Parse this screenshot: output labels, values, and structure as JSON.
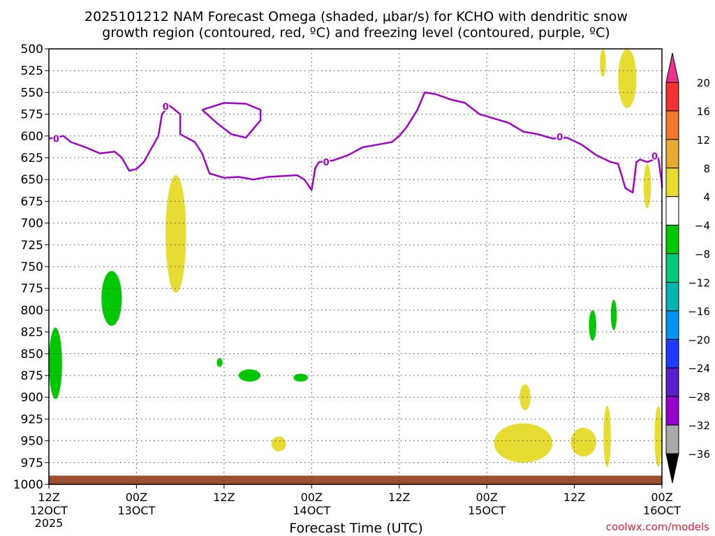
{
  "chart_data": {
    "type": "heatmap",
    "title_line1": "2025101212 NAM Forecast Omega (shaded, μbar/s) for KCHO with dendritic snow",
    "title_line2": "growth region (contoured, red, ºC) and freezing level (contoured, purple, ºC)",
    "xlabel": "Forecast Time (UTC)",
    "credit": "coolwx.com/models",
    "x_ticks": [
      {
        "hour": 0,
        "l1": "12Z",
        "l2": "12OCT",
        "l3": "2025"
      },
      {
        "hour": 12,
        "l1": "00Z",
        "l2": "13OCT",
        "l3": ""
      },
      {
        "hour": 24,
        "l1": "12Z",
        "l2": "",
        "l3": ""
      },
      {
        "hour": 36,
        "l1": "00Z",
        "l2": "14OCT",
        "l3": ""
      },
      {
        "hour": 48,
        "l1": "12Z",
        "l2": "",
        "l3": ""
      },
      {
        "hour": 60,
        "l1": "00Z",
        "l2": "15OCT",
        "l3": ""
      },
      {
        "hour": 72,
        "l1": "12Z",
        "l2": "",
        "l3": ""
      },
      {
        "hour": 84,
        "l1": "00Z",
        "l2": "16OCT",
        "l3": ""
      }
    ],
    "xlim": [
      0,
      84
    ],
    "pressure_levels": [
      "500",
      "525",
      "550",
      "575",
      "600",
      "625",
      "650",
      "675",
      "700",
      "725",
      "750",
      "775",
      "800",
      "825",
      "850",
      "875",
      "900",
      "925",
      "950",
      "975",
      "1000"
    ],
    "ylim_hpa": [
      500,
      1000
    ],
    "freezing_level": {
      "label": "0",
      "color": "#a000c8",
      "main": [
        [
          0,
          603
        ],
        [
          2,
          600
        ],
        [
          3,
          607
        ],
        [
          5,
          613
        ],
        [
          7,
          620
        ],
        [
          9,
          618
        ],
        [
          10,
          625
        ],
        [
          11,
          640
        ],
        [
          12,
          638
        ],
        [
          13,
          630
        ],
        [
          15,
          600
        ],
        [
          15.5,
          575
        ],
        [
          16.5,
          565
        ],
        [
          18,
          575
        ],
        [
          18,
          598
        ],
        [
          20,
          607
        ],
        [
          21,
          620
        ],
        [
          22,
          643
        ],
        [
          24,
          648
        ],
        [
          26,
          647
        ],
        [
          28,
          650
        ],
        [
          30,
          647
        ],
        [
          32,
          646
        ],
        [
          34,
          645
        ],
        [
          35,
          650
        ],
        [
          36,
          662
        ],
        [
          36.5,
          637
        ],
        [
          37,
          630
        ],
        [
          39,
          628
        ],
        [
          41,
          622
        ],
        [
          43,
          613
        ],
        [
          45,
          610
        ],
        [
          47,
          607
        ],
        [
          48,
          600
        ],
        [
          49,
          590
        ],
        [
          50.5,
          570
        ],
        [
          51.5,
          550
        ],
        [
          53,
          552
        ],
        [
          55,
          558
        ],
        [
          57,
          562
        ],
        [
          59,
          575
        ],
        [
          61,
          580
        ],
        [
          63,
          585
        ],
        [
          65,
          595
        ],
        [
          67,
          598
        ],
        [
          69,
          603
        ],
        [
          71,
          602
        ],
        [
          73,
          610
        ],
        [
          75,
          622
        ],
        [
          77,
          630
        ],
        [
          78,
          632
        ],
        [
          79,
          660
        ],
        [
          80,
          665
        ],
        [
          80.5,
          630
        ],
        [
          81,
          627
        ],
        [
          82,
          630
        ],
        [
          83.5,
          625
        ],
        [
          84,
          655
        ],
        [
          84,
          660
        ]
      ],
      "loop1": [
        [
          21,
          570
        ],
        [
          24,
          562
        ],
        [
          27,
          563
        ],
        [
          29,
          570
        ],
        [
          29,
          582
        ],
        [
          27,
          602
        ],
        [
          25,
          598
        ],
        [
          23,
          585
        ],
        [
          21,
          570
        ]
      ]
    },
    "omega_regions": [
      {
        "sign": "positive",
        "range": "4 to 8",
        "hour_start": 16.0,
        "hour_end": 18.8,
        "p_top": 645,
        "p_bottom": 780
      },
      {
        "sign": "negative",
        "range": "-4 to -8",
        "hour_start": 7.2,
        "hour_end": 10.0,
        "p_top": 755,
        "p_bottom": 818
      },
      {
        "sign": "negative",
        "range": "-4 to -8",
        "hour_start": 0.0,
        "hour_end": 1.8,
        "p_top": 820,
        "p_bottom": 902
      },
      {
        "sign": "negative",
        "range": "-4 to -8",
        "hour_start": 23.0,
        "hour_end": 23.8,
        "p_top": 855,
        "p_bottom": 865
      },
      {
        "sign": "negative",
        "range": "-4 to -8",
        "hour_start": 26.0,
        "hour_end": 29.0,
        "p_top": 868,
        "p_bottom": 882
      },
      {
        "sign": "negative",
        "range": "-4 to -8",
        "hour_start": 33.5,
        "hour_end": 35.5,
        "p_top": 873,
        "p_bottom": 882
      },
      {
        "sign": "positive",
        "range": "4 to 8",
        "hour_start": 30.5,
        "hour_end": 32.5,
        "p_top": 945,
        "p_bottom": 962
      },
      {
        "sign": "negative",
        "range": "-4 to -8",
        "hour_start": 77.0,
        "hour_end": 77.8,
        "p_top": 788,
        "p_bottom": 823
      },
      {
        "sign": "negative",
        "range": "-4 to -8",
        "hour_start": 74.0,
        "hour_end": 75.0,
        "p_top": 800,
        "p_bottom": 835
      },
      {
        "sign": "positive",
        "range": "4 to 8",
        "hour_start": 64.5,
        "hour_end": 66.0,
        "p_top": 885,
        "p_bottom": 915
      },
      {
        "sign": "positive",
        "range": "4 to 8",
        "hour_start": 61.0,
        "hour_end": 69.0,
        "p_top": 930,
        "p_bottom": 975
      },
      {
        "sign": "positive",
        "range": "4 to 8",
        "hour_start": 71.5,
        "hour_end": 75.0,
        "p_top": 935,
        "p_bottom": 968
      },
      {
        "sign": "positive",
        "range": "4 to 8",
        "hour_start": 76.0,
        "hour_end": 77.0,
        "p_top": 910,
        "p_bottom": 980
      },
      {
        "sign": "positive",
        "range": "4 to 8",
        "hour_start": 78.0,
        "hour_end": 80.5,
        "p_top": 500,
        "p_bottom": 568
      },
      {
        "sign": "positive",
        "range": "4 to 8",
        "hour_start": 75.5,
        "hour_end": 76.3,
        "p_top": 500,
        "p_bottom": 532
      },
      {
        "sign": "positive",
        "range": "4 to 8",
        "hour_start": 81.5,
        "hour_end": 82.5,
        "p_top": 632,
        "p_bottom": 683
      },
      {
        "sign": "positive",
        "range": "4 to 8",
        "hour_start": 83.0,
        "hour_end": 84.0,
        "p_top": 910,
        "p_bottom": 980
      }
    ],
    "terrain": {
      "color": "#9c4f2c",
      "p_top": 990,
      "p_bottom": 1000
    },
    "colorbar": {
      "labels": [
        "20",
        "16",
        "12",
        "8",
        "4",
        "−4",
        "−8",
        "−12",
        "−16",
        "−20",
        "−24",
        "−28",
        "−32",
        "−36"
      ],
      "colors": [
        "#f0328c",
        "#f03232",
        "#f07828",
        "#e6aa32",
        "#e6dc32",
        "#ffffff",
        "#00c800",
        "#00c87a",
        "#00b4b4",
        "#0096f0",
        "#1e3cff",
        "#5a1ec8",
        "#9600c8",
        "#aaaaaa",
        "#000000"
      ]
    }
  }
}
